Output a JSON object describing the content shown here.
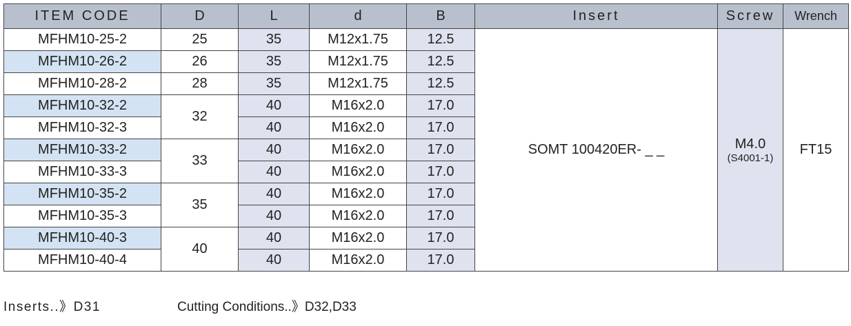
{
  "table": {
    "header": [
      "ITEM CODE",
      "D",
      "L",
      "d",
      "B",
      "Insert",
      "Screw",
      "Wrench"
    ],
    "rows": [
      {
        "code": "MFHM10-25-2",
        "D": "25",
        "L": "35",
        "d": "M12x1.75",
        "B": "12.5"
      },
      {
        "code": "MFHM10-26-2",
        "D": "26",
        "L": "35",
        "d": "M12x1.75",
        "B": "12.5"
      },
      {
        "code": "MFHM10-28-2",
        "D": "28",
        "L": "35",
        "d": "M12x1.75",
        "B": "12.5"
      },
      {
        "code": "MFHM10-32-2",
        "D": "32",
        "L": "40",
        "d": "M16x2.0",
        "B": "17.0"
      },
      {
        "code": "MFHM10-32-3",
        "L": "40",
        "d": "M16x2.0",
        "B": "17.0"
      },
      {
        "code": "MFHM10-33-2",
        "D": "33",
        "L": "40",
        "d": "M16x2.0",
        "B": "17.0"
      },
      {
        "code": "MFHM10-33-3",
        "L": "40",
        "d": "M16x2.0",
        "B": "17.0"
      },
      {
        "code": "MFHM10-35-2",
        "D": "35",
        "L": "40",
        "d": "M16x2.0",
        "B": "17.0"
      },
      {
        "code": "MFHM10-35-3",
        "L": "40",
        "d": "M16x2.0",
        "B": "17.0"
      },
      {
        "code": "MFHM10-40-3",
        "D": "40",
        "L": "40",
        "d": "M16x2.0",
        "B": "17.0"
      },
      {
        "code": "MFHM10-40-4",
        "L": "40",
        "d": "M16x2.0",
        "B": "17.0"
      }
    ],
    "insert": "SOMT 100420ER- _ _",
    "screw": {
      "main": "M4.0",
      "sub": "(S4001-1)"
    },
    "wrench": "FT15"
  },
  "footer": [
    "Inserts..》D31",
    "Cutting Conditions..》D32,D33"
  ]
}
